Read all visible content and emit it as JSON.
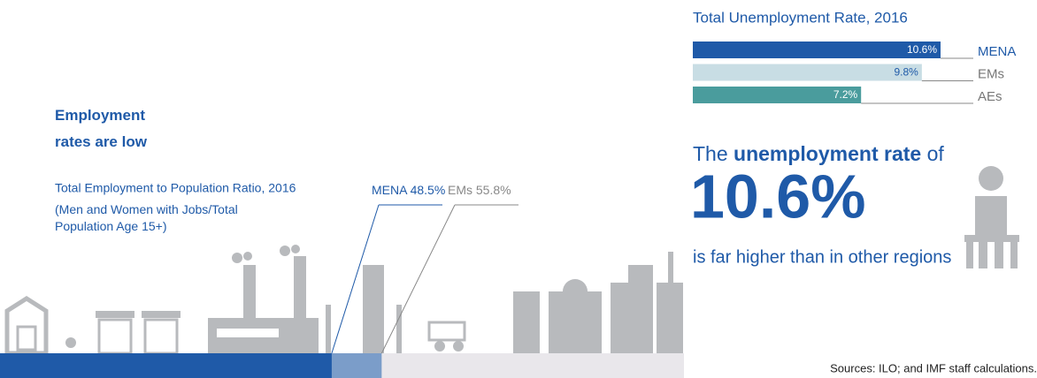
{
  "heading": "Employment rates are low",
  "statement": {
    "prefix": "The",
    "emphasis": "unemployment rate",
    "suffix": "of",
    "figure": "10.6%",
    "tail": "is far higher than in other regions"
  },
  "source": "Sources: ILO; and IMF staff calculations.",
  "chart_data": [
    {
      "type": "hbar",
      "title": "Total Unemployment Rate, 2016",
      "categories": [
        "MENA",
        "EMs",
        "AEs"
      ],
      "values": [
        10.6,
        9.8,
        7.2
      ],
      "value_labels": [
        "10.6%",
        "9.8%",
        "7.2%"
      ],
      "colors": [
        "#1f5aa8",
        "#c8dde4",
        "#4a9c9d"
      ]
    },
    {
      "type": "overlay-bar",
      "title": "Total Employment to Population Ratio, 2016",
      "subtitle": "(Men and Women with Jobs/Total Population Age 15+)",
      "xlim": [
        0,
        100
      ],
      "track_color": "#e9e7eb",
      "series": [
        {
          "name": "MENA",
          "color": "#1f5aa8",
          "values": [
            48.5
          ],
          "value_labels": [
            "48.5%"
          ]
        },
        {
          "name": "EMs",
          "color": "#7b9dc9",
          "values": [
            55.8
          ],
          "value_labels": [
            "55.8%"
          ]
        }
      ]
    }
  ]
}
